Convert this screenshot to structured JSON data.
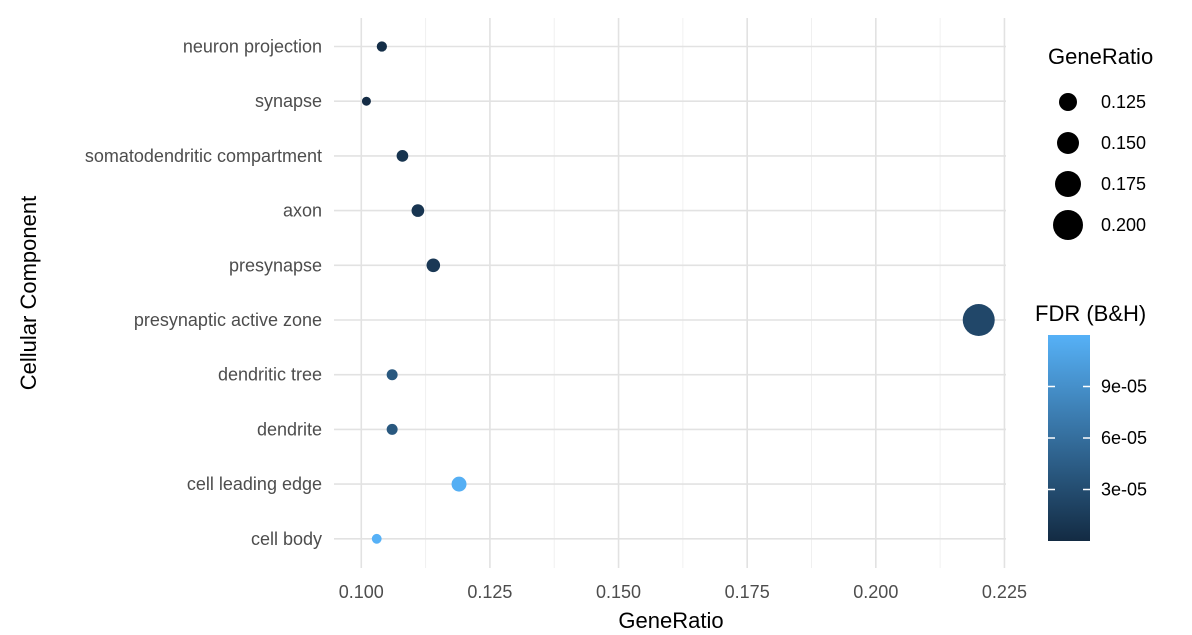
{
  "chart_data": {
    "type": "scatter",
    "title": "",
    "xlabel": "GeneRatio",
    "ylabel": "Cellular Component",
    "xlim": [
      0.0947,
      0.2253
    ],
    "x_ticks": [
      0.1,
      0.125,
      0.15,
      0.175,
      0.2,
      0.225
    ],
    "x_tick_labels": [
      "0.100",
      "0.125",
      "0.150",
      "0.175",
      "0.200",
      "0.225"
    ],
    "categories": [
      "neuron projection",
      "synapse",
      "somatodendritic compartment",
      "axon",
      "presynapse",
      "presynaptic active zone",
      "dendritic tree",
      "dendrite",
      "cell leading edge",
      "cell body"
    ],
    "points": [
      {
        "term": "neuron projection",
        "gene_ratio": 0.104,
        "fdr": 2.5e-06
      },
      {
        "term": "synapse",
        "gene_ratio": 0.101,
        "fdr": 1e-06
      },
      {
        "term": "somatodendritic compartment",
        "gene_ratio": 0.108,
        "fdr": 8e-06
      },
      {
        "term": "axon",
        "gene_ratio": 0.111,
        "fdr": 9e-06
      },
      {
        "term": "presynapse",
        "gene_ratio": 0.114,
        "fdr": 1.2e-05
      },
      {
        "term": "presynaptic active zone",
        "gene_ratio": 0.22,
        "fdr": 2.5e-05
      },
      {
        "term": "dendritic tree",
        "gene_ratio": 0.106,
        "fdr": 4e-05
      },
      {
        "term": "dendrite",
        "gene_ratio": 0.106,
        "fdr": 4e-05
      },
      {
        "term": "cell leading edge",
        "gene_ratio": 0.119,
        "fdr": 0.000118
      },
      {
        "term": "cell body",
        "gene_ratio": 0.103,
        "fdr": 0.00012
      }
    ],
    "grid": true,
    "size_legend": {
      "title": "GeneRatio",
      "values": [
        0.125,
        0.15,
        0.175,
        0.2
      ],
      "labels": [
        "0.125",
        "0.150",
        "0.175",
        "0.200"
      ]
    },
    "color_legend": {
      "title": "FDR (B&H)",
      "min": 0.0,
      "max": 0.00012,
      "ticks": [
        3e-05,
        6e-05,
        9e-05
      ],
      "tick_labels": [
        "3e-05",
        "6e-05",
        "9e-05"
      ],
      "low_color": "#132b43",
      "high_color": "#56b1f7"
    },
    "legend_position": "right"
  }
}
